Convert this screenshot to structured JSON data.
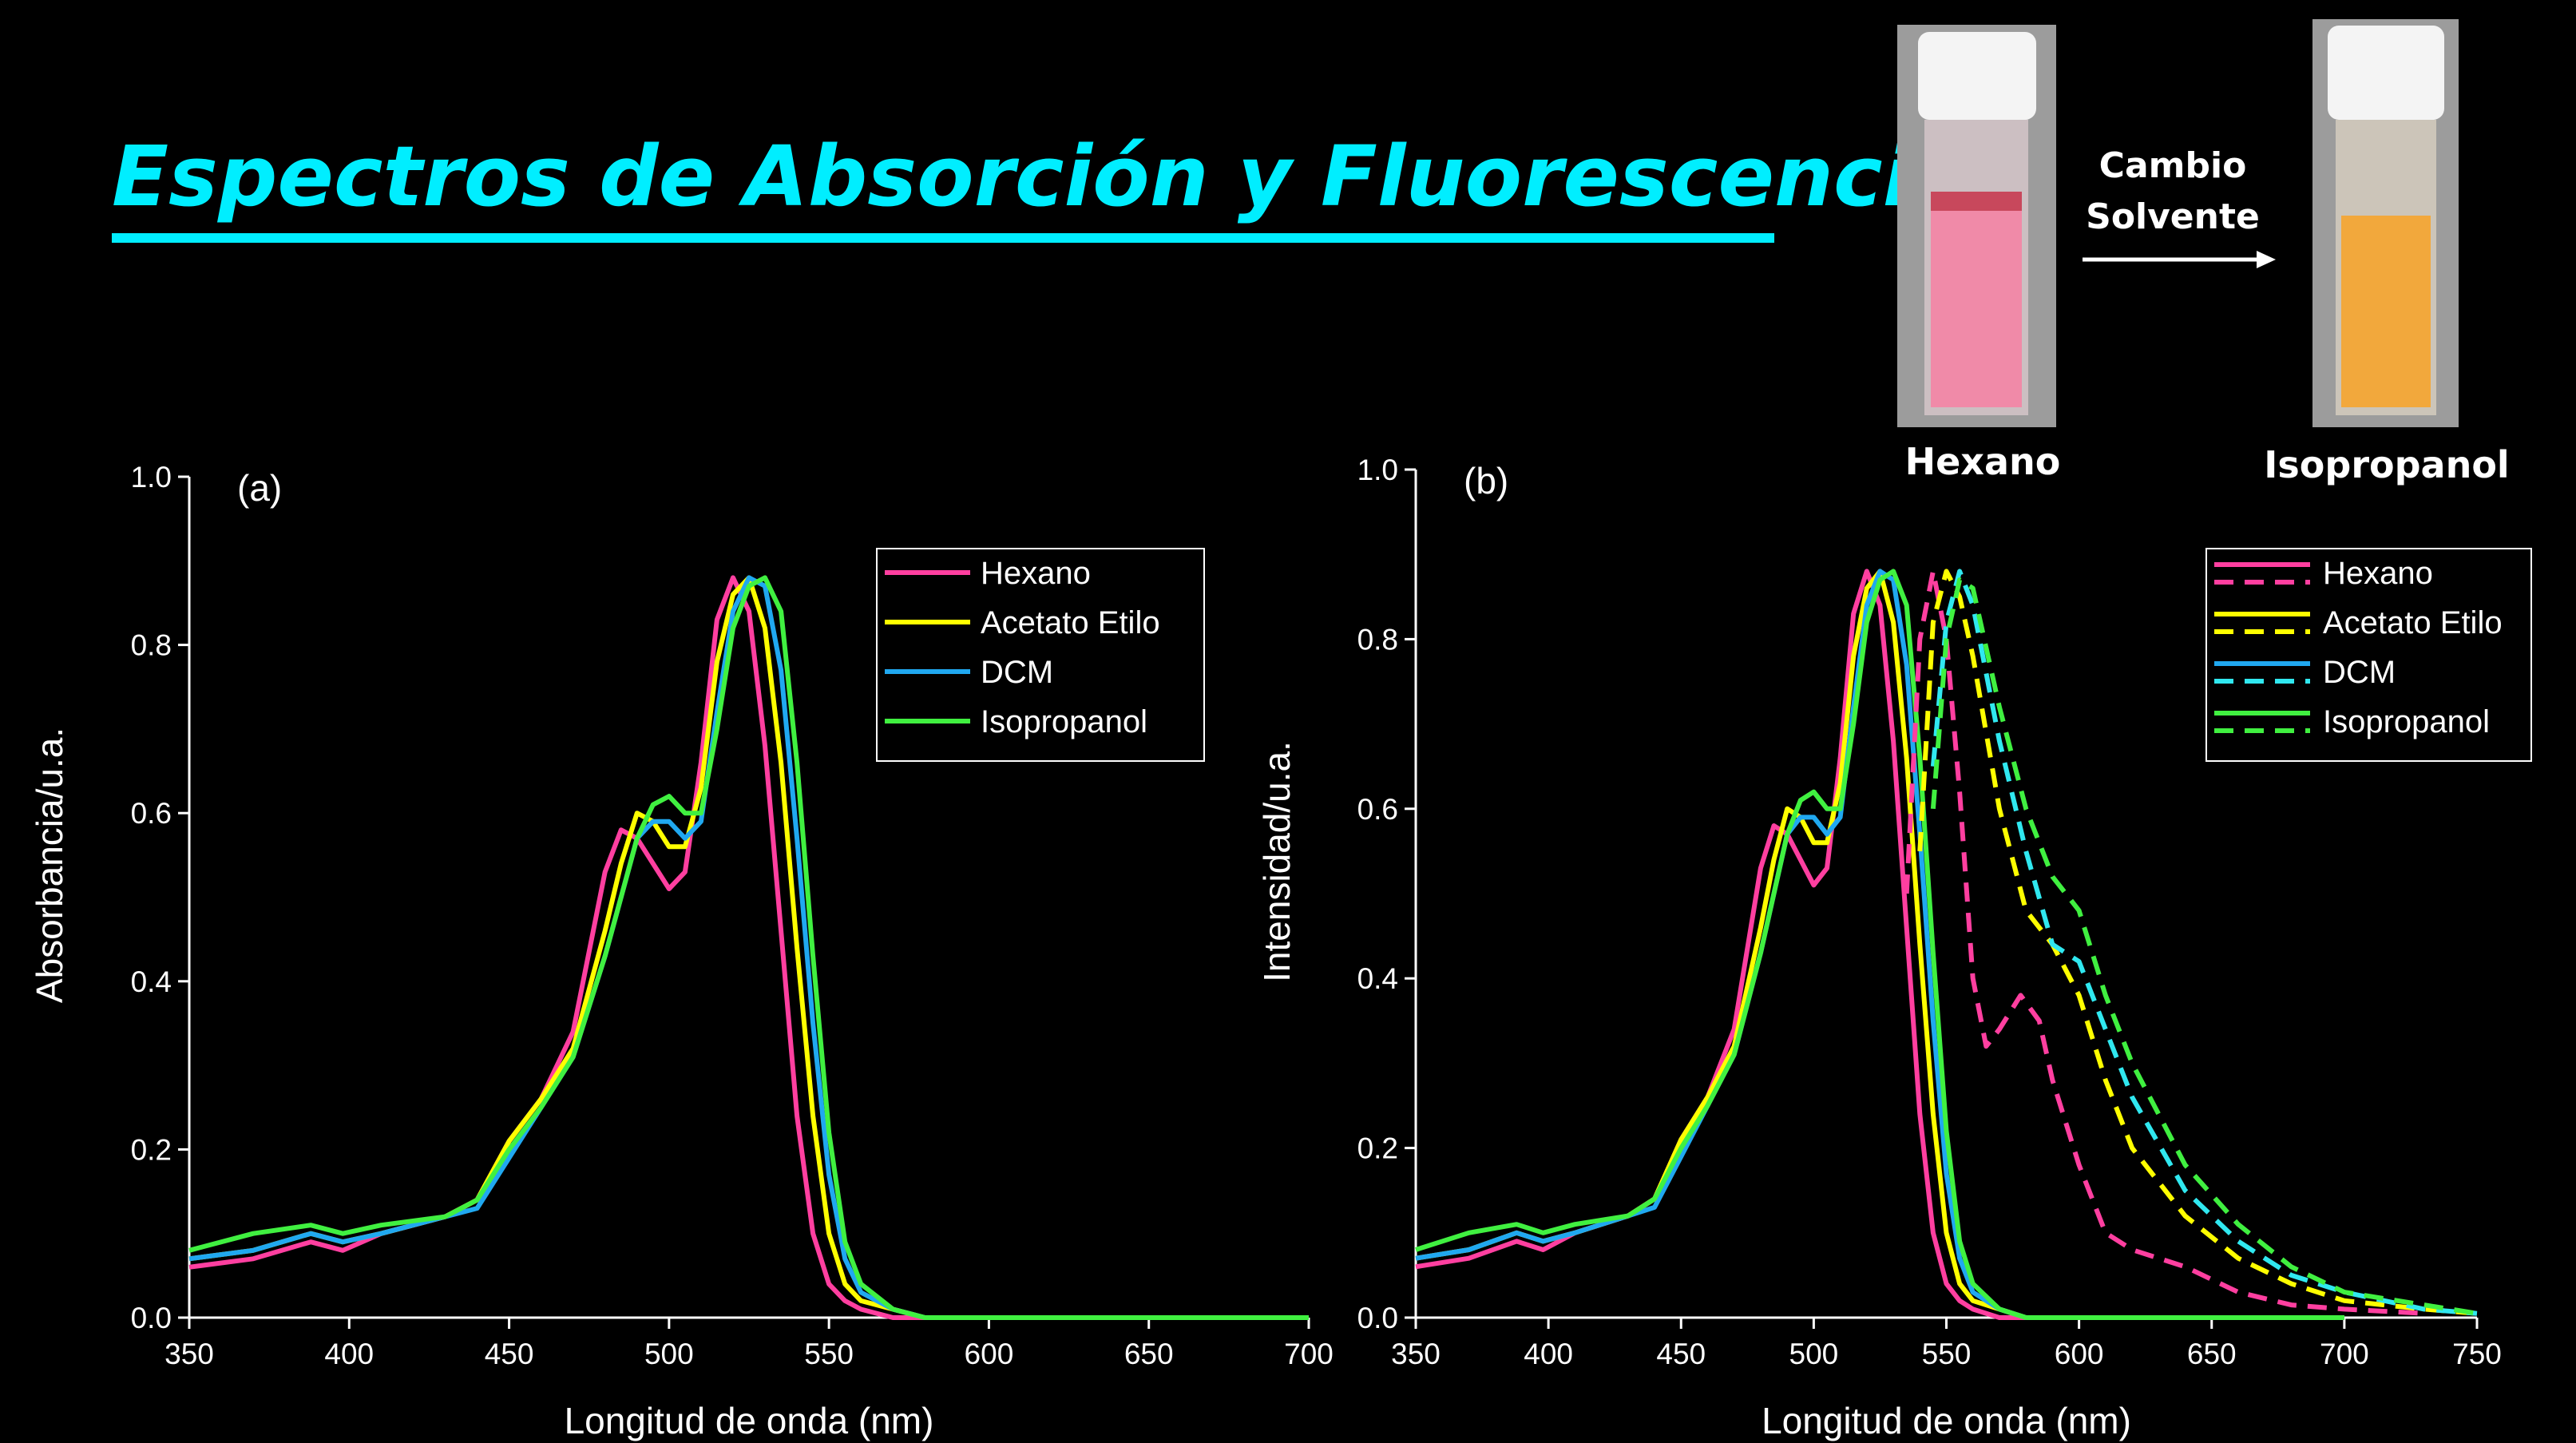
{
  "title": "Espectros de Absorción y Fluorescencia",
  "photos": {
    "before": "Hexano",
    "after": "Isopropanol",
    "arrow_label": [
      "Cambio",
      "Solvente"
    ]
  },
  "chart_data": [
    {
      "type": "line",
      "panel": "(a)",
      "x_label": "Longitud de onda (nm)",
      "y_label": "Absorbancia/u.a.",
      "xlim": [
        350,
        700
      ],
      "xticks": [
        350,
        400,
        450,
        500,
        550,
        600,
        650,
        700
      ],
      "ylim": [
        0,
        1
      ],
      "yticks": [
        {
          "value": 0,
          "label": "0.0"
        },
        0.2,
        0.4,
        0.6,
        0.8,
        {
          "value": 1,
          "label": "1.0"
        }
      ],
      "legend": "upper right",
      "x": [
        350,
        370,
        388,
        398,
        410,
        430,
        440,
        450,
        460,
        470,
        480,
        485,
        490,
        495,
        500,
        505,
        510,
        515,
        520,
        525,
        530,
        535,
        540,
        545,
        550,
        555,
        560,
        570,
        580,
        600,
        700
      ],
      "series": [
        {
          "name": "Hexano",
          "color": "#ff3fa0",
          "values": [
            0.06,
            0.07,
            0.09,
            0.08,
            0.1,
            0.12,
            0.14,
            0.21,
            0.26,
            0.34,
            0.53,
            0.58,
            0.57,
            0.54,
            0.51,
            0.53,
            0.66,
            0.83,
            0.88,
            0.84,
            0.68,
            0.46,
            0.24,
            0.1,
            0.04,
            0.02,
            0.01,
            0,
            0,
            0,
            0
          ]
        },
        {
          "name": "Acetato Etilo",
          "color": "#ffff00",
          "values": [
            0.07,
            0.08,
            0.1,
            0.09,
            0.1,
            0.12,
            0.14,
            0.21,
            0.26,
            0.32,
            0.46,
            0.54,
            0.6,
            0.59,
            0.56,
            0.56,
            0.63,
            0.78,
            0.86,
            0.88,
            0.82,
            0.66,
            0.44,
            0.24,
            0.1,
            0.04,
            0.02,
            0.01,
            0,
            0,
            0
          ]
        },
        {
          "name": "DCM",
          "color": "#20a8f0",
          "values": [
            0.07,
            0.08,
            0.1,
            0.09,
            0.1,
            0.12,
            0.13,
            0.19,
            0.25,
            0.31,
            0.43,
            0.5,
            0.57,
            0.59,
            0.59,
            0.57,
            0.59,
            0.72,
            0.84,
            0.88,
            0.87,
            0.77,
            0.57,
            0.35,
            0.17,
            0.07,
            0.03,
            0.01,
            0,
            0,
            0
          ]
        },
        {
          "name": "Isopropanol",
          "color": "#40f040",
          "values": [
            0.08,
            0.1,
            0.11,
            0.1,
            0.11,
            0.12,
            0.14,
            0.2,
            0.25,
            0.31,
            0.43,
            0.5,
            0.57,
            0.61,
            0.62,
            0.6,
            0.6,
            0.7,
            0.82,
            0.87,
            0.88,
            0.84,
            0.66,
            0.43,
            0.22,
            0.09,
            0.04,
            0.01,
            0,
            0,
            0
          ]
        }
      ]
    },
    {
      "type": "line",
      "panel": "(b)",
      "x_label": "Longitud de onda (nm)",
      "y_label": "Intensidad/u.a.",
      "xlim": [
        350,
        750
      ],
      "xticks": [
        350,
        400,
        450,
        500,
        550,
        600,
        650,
        700,
        750
      ],
      "ylim": [
        0,
        1
      ],
      "yticks": [
        {
          "value": 0,
          "label": "0.0"
        },
        0.2,
        0.4,
        0.6,
        0.8,
        {
          "value": 1,
          "label": "1.0"
        }
      ],
      "legend": "upper right",
      "x": [
        350,
        370,
        388,
        398,
        410,
        430,
        440,
        450,
        460,
        470,
        480,
        485,
        490,
        495,
        500,
        505,
        510,
        515,
        520,
        525,
        530,
        535,
        540,
        545,
        550,
        555,
        560,
        570,
        580,
        600,
        700
      ],
      "series": [
        {
          "name": "Hexano",
          "color": "#ff3fa0",
          "values": [
            0.06,
            0.07,
            0.09,
            0.08,
            0.1,
            0.12,
            0.14,
            0.21,
            0.26,
            0.34,
            0.53,
            0.58,
            0.57,
            0.54,
            0.51,
            0.53,
            0.66,
            0.83,
            0.88,
            0.84,
            0.68,
            0.46,
            0.24,
            0.1,
            0.04,
            0.02,
            0.01,
            0,
            0,
            0,
            0
          ]
        },
        {
          "name": "Acetato Etilo",
          "color": "#ffff00",
          "values": [
            0.07,
            0.08,
            0.1,
            0.09,
            0.1,
            0.12,
            0.14,
            0.21,
            0.26,
            0.32,
            0.46,
            0.54,
            0.6,
            0.59,
            0.56,
            0.56,
            0.63,
            0.78,
            0.86,
            0.88,
            0.82,
            0.66,
            0.44,
            0.24,
            0.1,
            0.04,
            0.02,
            0.01,
            0,
            0,
            0
          ]
        },
        {
          "name": "DCM",
          "color": "#20a8f0",
          "values": [
            0.07,
            0.08,
            0.1,
            0.09,
            0.1,
            0.12,
            0.13,
            0.19,
            0.25,
            0.31,
            0.43,
            0.5,
            0.57,
            0.59,
            0.59,
            0.57,
            0.59,
            0.72,
            0.84,
            0.88,
            0.87,
            0.77,
            0.57,
            0.35,
            0.17,
            0.07,
            0.03,
            0.01,
            0,
            0,
            0
          ]
        },
        {
          "name": "Isopropanol",
          "color": "#40f040",
          "values": [
            0.08,
            0.1,
            0.11,
            0.1,
            0.11,
            0.12,
            0.14,
            0.2,
            0.25,
            0.31,
            0.43,
            0.5,
            0.57,
            0.61,
            0.62,
            0.6,
            0.6,
            0.7,
            0.82,
            0.87,
            0.88,
            0.84,
            0.66,
            0.43,
            0.22,
            0.09,
            0.04,
            0.01,
            0,
            0,
            0
          ]
        },
        {
          "dash": true,
          "color": "#ff3fa0",
          "x": [
            535,
            540,
            545,
            550,
            555,
            560,
            565,
            570,
            578,
            585,
            590,
            600,
            610,
            620,
            640,
            660,
            680,
            700,
            730
          ],
          "values": [
            0.5,
            0.8,
            0.88,
            0.8,
            0.62,
            0.4,
            0.32,
            0.34,
            0.38,
            0.35,
            0.28,
            0.18,
            0.1,
            0.08,
            0.06,
            0.03,
            0.015,
            0.01,
            0.005
          ]
        },
        {
          "dash": true,
          "color": "#ffff00",
          "x": [
            540,
            545,
            550,
            555,
            560,
            570,
            580,
            590,
            600,
            610,
            620,
            640,
            660,
            680,
            700,
            730,
            750
          ],
          "values": [
            0.55,
            0.82,
            0.88,
            0.85,
            0.78,
            0.6,
            0.48,
            0.44,
            0.38,
            0.28,
            0.2,
            0.12,
            0.07,
            0.04,
            0.02,
            0.01,
            0.005
          ]
        },
        {
          "dash": true,
          "color": "#30e8f0",
          "x": [
            545,
            550,
            555,
            560,
            570,
            580,
            590,
            600,
            610,
            620,
            640,
            660,
            680,
            700,
            730,
            750
          ],
          "values": [
            0.65,
            0.82,
            0.88,
            0.84,
            0.68,
            0.55,
            0.44,
            0.42,
            0.34,
            0.26,
            0.15,
            0.09,
            0.05,
            0.03,
            0.01,
            0.005
          ]
        },
        {
          "dash": true,
          "color": "#40f040",
          "x": [
            545,
            550,
            555,
            560,
            570,
            580,
            590,
            600,
            610,
            620,
            640,
            660,
            680,
            700,
            730,
            750
          ],
          "values": [
            0.6,
            0.8,
            0.87,
            0.86,
            0.72,
            0.6,
            0.52,
            0.48,
            0.38,
            0.3,
            0.18,
            0.11,
            0.06,
            0.03,
            0.015,
            0.005
          ]
        }
      ]
    }
  ]
}
